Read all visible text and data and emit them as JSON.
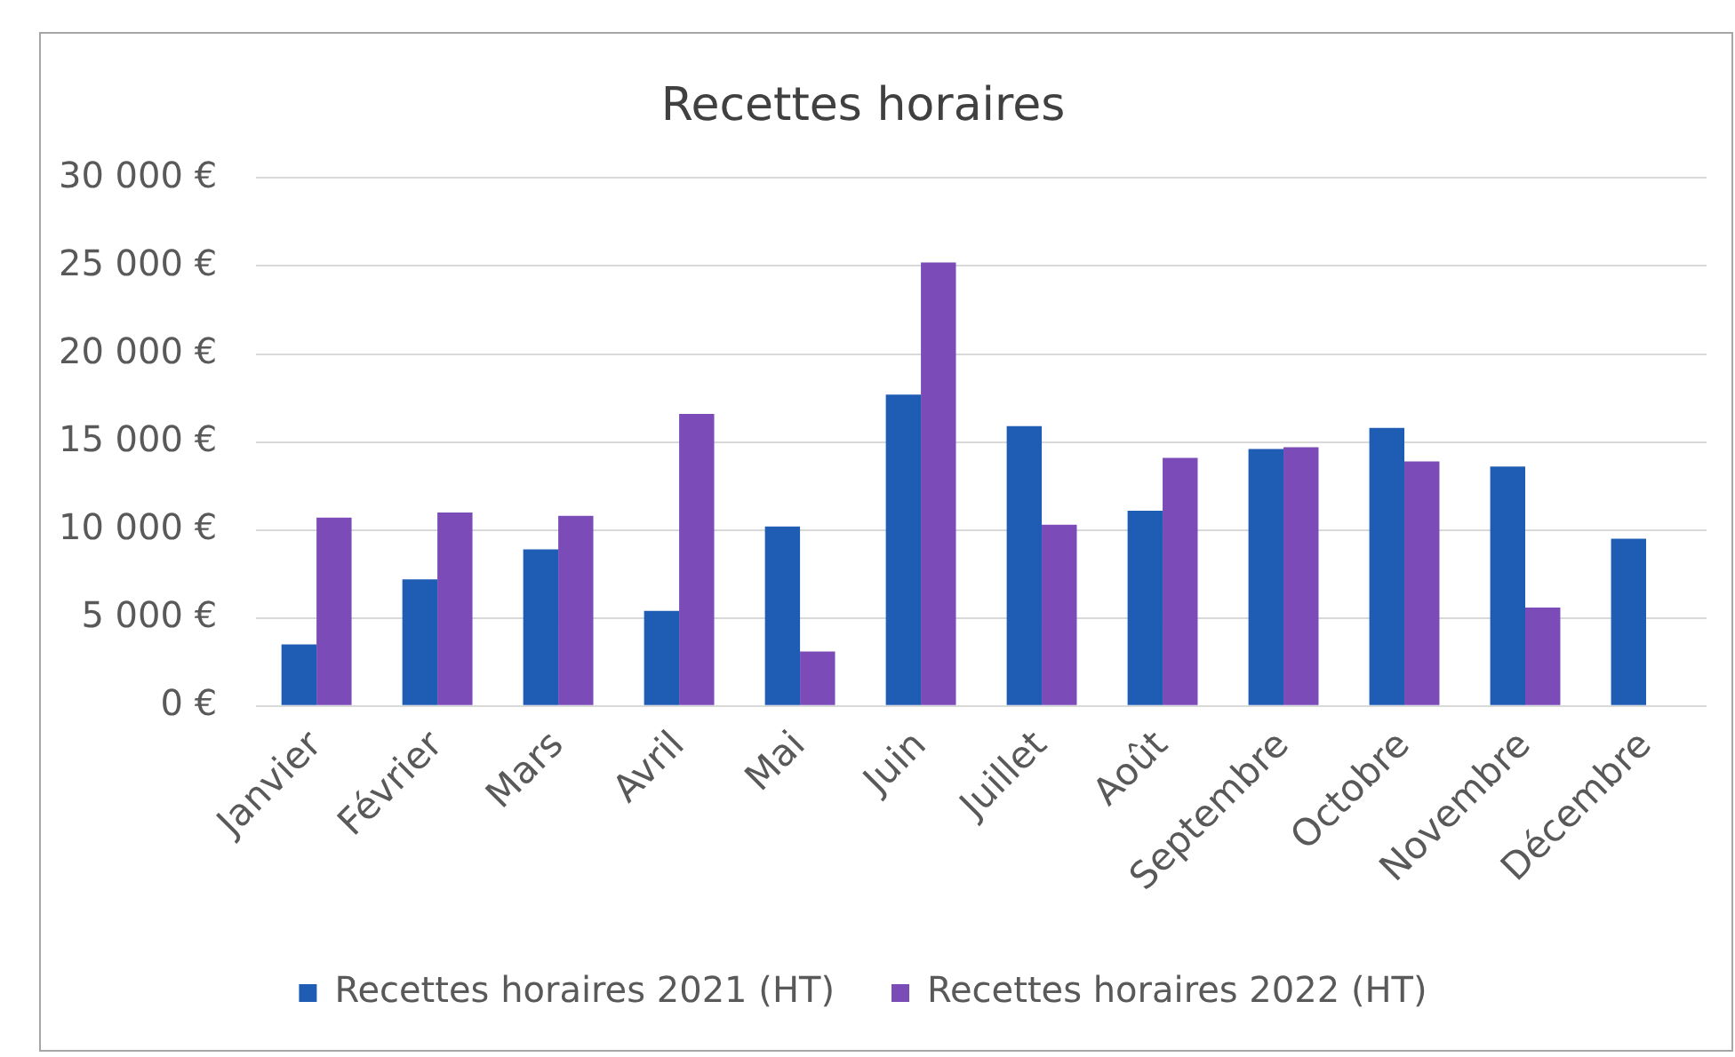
{
  "chart_data": {
    "type": "bar",
    "title": "Recettes horaires",
    "categories": [
      "Janvier",
      "Février",
      "Mars",
      "Avril",
      "Mai",
      "Juin",
      "Juillet",
      "Août",
      "Septembre",
      "Octobre",
      "Novembre",
      "Décembre"
    ],
    "series": [
      {
        "name": "Recettes horaires 2021 (HT)",
        "color": "#1f5db4",
        "values": [
          3500,
          7200,
          8900,
          5400,
          10200,
          17700,
          15900,
          11100,
          14600,
          15800,
          13600,
          9500
        ]
      },
      {
        "name": "Recettes horaires 2022 (HT)",
        "color": "#7b4bb8",
        "values": [
          10700,
          11000,
          10800,
          16600,
          3100,
          25200,
          10300,
          14100,
          14700,
          13900,
          5600,
          null
        ]
      }
    ],
    "ylim": [
      0,
      30000
    ],
    "yticks": [
      {
        "value": 0,
        "label": "0 €"
      },
      {
        "value": 5000,
        "label": "5 000 €"
      },
      {
        "value": 10000,
        "label": "10 000 €"
      },
      {
        "value": 15000,
        "label": "15 000 €"
      },
      {
        "value": 20000,
        "label": "20 000 €"
      },
      {
        "value": 25000,
        "label": "25 000 €"
      },
      {
        "value": 30000,
        "label": "30 000 €"
      }
    ],
    "grid": "y",
    "legend": "bottom"
  }
}
